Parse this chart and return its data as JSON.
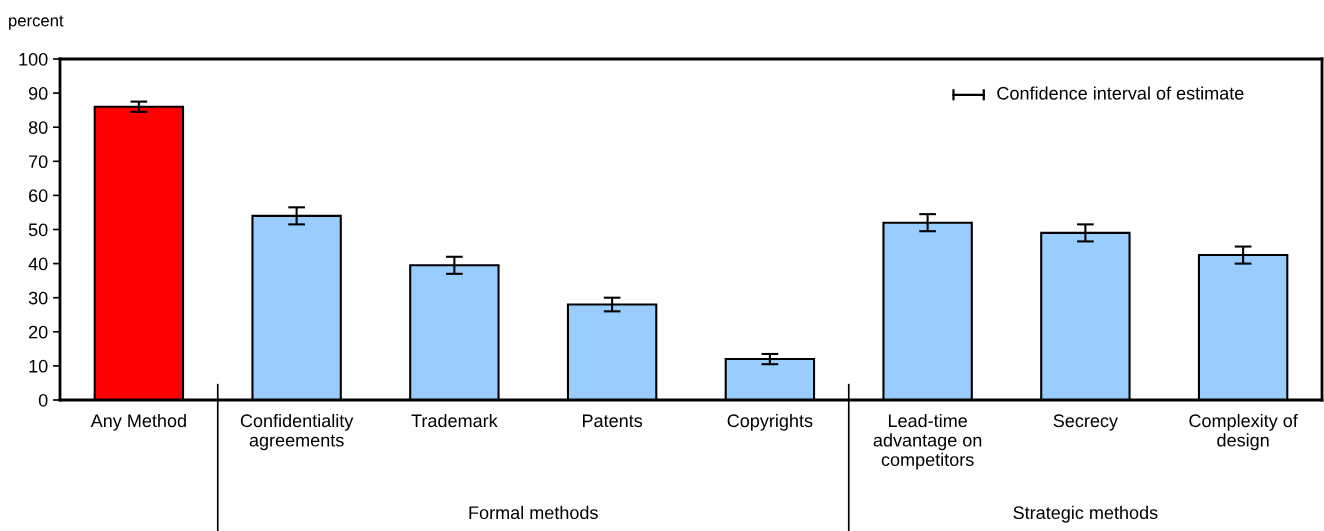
{
  "chart_data": {
    "type": "bar",
    "ylabel": "percent",
    "categories": [
      "Any Method",
      "Confidentiality\nagreements",
      "Trademark",
      "Patents",
      "Copyrights",
      "Lead-time\nadvantage on\ncompetitors",
      "Secrecy",
      "Complexity of\ndesign"
    ],
    "values": [
      86,
      54,
      39.5,
      28,
      12,
      52,
      49,
      42.5
    ],
    "colors": [
      "#ff0000",
      "#99ccff",
      "#99ccff",
      "#99ccff",
      "#99ccff",
      "#99ccff",
      "#99ccff",
      "#99ccff"
    ],
    "errors": [
      [
        84.5,
        87.5
      ],
      [
        51.5,
        56.5
      ],
      [
        37,
        42
      ],
      [
        26,
        30
      ],
      [
        10.5,
        13.5
      ],
      [
        49.5,
        54.5
      ],
      [
        46.5,
        51.5
      ],
      [
        40,
        45
      ]
    ],
    "ylim": [
      0,
      100
    ],
    "yticks": [
      0,
      10,
      20,
      30,
      40,
      50,
      60,
      70,
      80,
      90,
      100
    ],
    "grid": false,
    "annotations": [
      "Confidence interval of estimate",
      "Formal methods",
      "Strategic methods"
    ]
  }
}
